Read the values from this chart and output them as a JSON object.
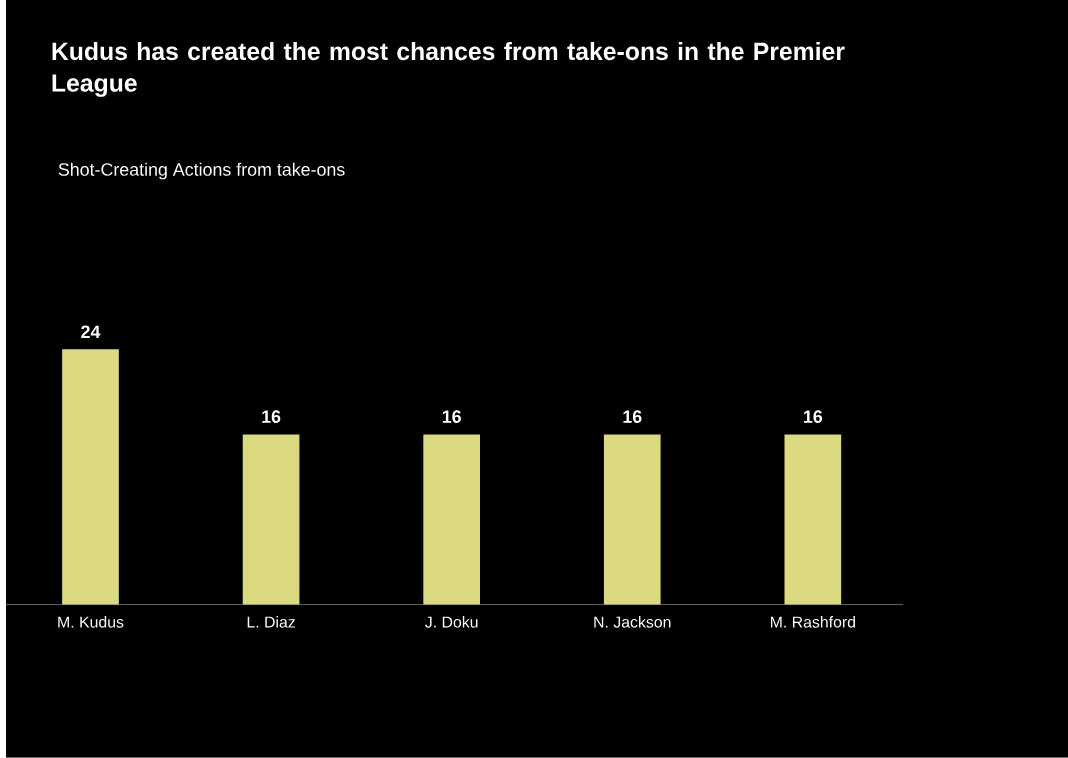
{
  "chart_data": {
    "type": "bar",
    "title": "Kudus has created the most chances from take-ons in the Premier League",
    "subtitle": "Shot-Creating Actions from take-ons",
    "categories": [
      "M. Kudus",
      "L. Diaz",
      "J. Doku",
      "N. Jackson",
      "M. Rashford"
    ],
    "values": [
      24,
      16,
      16,
      16,
      16
    ],
    "color": "#dcda80",
    "data_labels": true
  }
}
